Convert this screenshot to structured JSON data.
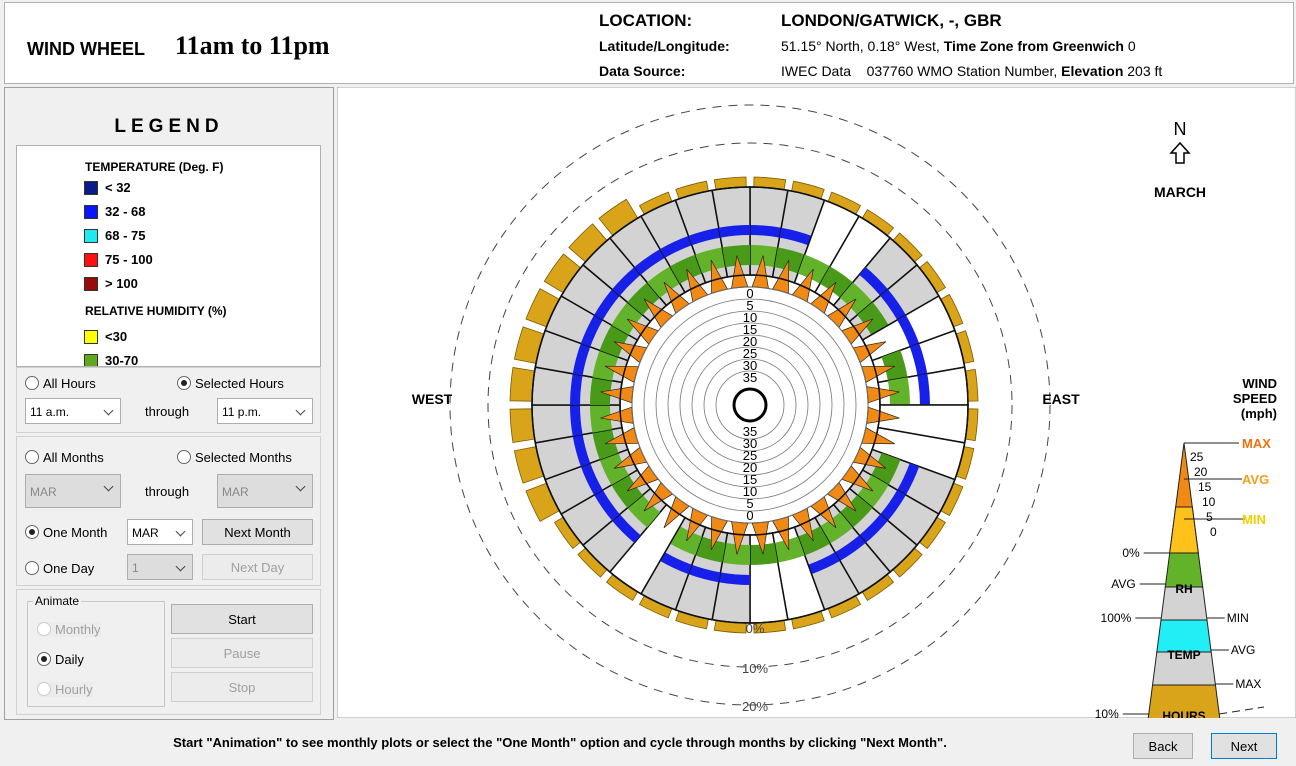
{
  "header": {
    "title": "WIND WHEEL",
    "hours": "11am to 11pm",
    "location_label": "LOCATION:",
    "location": "LONDON/GATWICK, -, GBR",
    "latlon_label": "Latitude/Longitude:",
    "latlon": "51.15° North, 0.18° West,",
    "tz_label": "Time Zone from Greenwich",
    "tz": "0",
    "source_label": "Data Source:",
    "source": "IWEC Data",
    "station": "037760 WMO Station Number,",
    "elev_label": "Elevation",
    "elev": "203 ft"
  },
  "legend": {
    "title": "LEGEND",
    "temp_title": "TEMPERATURE (Deg. F)",
    "temp": [
      {
        "color": "#0b1a8a",
        "label": "< 32"
      },
      {
        "color": "#0a14ff",
        "label": "32  -  68"
      },
      {
        "color": "#22e6f0",
        "label": "68  -  75"
      },
      {
        "color": "#ff1010",
        "label": "75  -  100"
      },
      {
        "color": "#990a0a",
        "label": "> 100"
      }
    ],
    "rh_title": "RELATIVE HUMIDITY (%)",
    "rh": [
      {
        "color": "#ffff00",
        "label": "<30"
      },
      {
        "color": "#62a81e",
        "label": "30-70"
      }
    ]
  },
  "controls": {
    "all_hours": "All Hours",
    "selected_hours": "Selected Hours",
    "hour_from": "11 a.m.",
    "through": "through",
    "hour_to": "11 p.m.",
    "all_months": "All Months",
    "selected_months": "Selected Months",
    "month_from": "MAR",
    "month_to": "MAR",
    "one_month": "One Month",
    "one_month_value": "MAR",
    "next_month": "Next Month",
    "one_day": "One Day",
    "one_day_value": "1",
    "next_day": "Next Day",
    "animate": "Animate",
    "monthly": "Monthly",
    "daily": "Daily",
    "hourly": "Hourly",
    "start": "Start",
    "pause": "Pause",
    "stop": "Stop"
  },
  "chart": {
    "west": "WEST",
    "east": "EAST",
    "north": "N",
    "month": "MARCH",
    "speed_rings": [
      "0",
      "5",
      "10",
      "15",
      "20",
      "25",
      "30",
      "35"
    ],
    "percent_rings": [
      "0%",
      "10%",
      "20%"
    ]
  },
  "key": {
    "title": [
      "WIND",
      "SPEED",
      "(mph)"
    ],
    "max": "MAX",
    "avg": "AVG",
    "min": "MIN",
    "speeds": [
      "25",
      "20",
      "15",
      "10",
      "5",
      "0"
    ],
    "rh_0": "0%",
    "rh_avg": "AVG",
    "rh": "RH",
    "rh_100": "100%",
    "t_min": "MIN",
    "temp": "TEMP",
    "t_avg": "AVG",
    "t_max": "MAX",
    "h_10": "10%",
    "hours": "HOURS"
  },
  "footer": {
    "hint": "Start \"Animation\" to see monthly plots or select the \"One Month\" option and cycle through months by clicking \"Next Month\".",
    "back": "Back",
    "next": "Next"
  }
}
